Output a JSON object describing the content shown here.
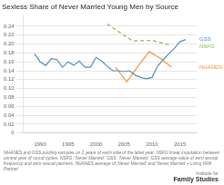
{
  "chart_data": {
    "type": "line",
    "title": "Sexless Share of Never Married Young Men by Source",
    "series": [
      {
        "name": "GSS",
        "color": "#4e8fbe",
        "line_style": "solid",
        "x": [
          1989,
          1990,
          1991,
          1992,
          1993,
          1994,
          1995,
          1996,
          1997,
          1998,
          1999,
          2000,
          2001,
          2002,
          2003,
          2004,
          2005,
          2006,
          2007,
          2008,
          2009,
          2010,
          2011,
          2012,
          2013,
          2014,
          2015,
          2016
        ],
        "values": [
          0.178,
          0.16,
          0.152,
          0.167,
          0.165,
          0.148,
          0.16,
          0.152,
          0.162,
          0.148,
          0.148,
          0.17,
          0.162,
          0.15,
          0.14,
          0.14,
          0.138,
          0.14,
          0.13,
          0.125,
          0.122,
          0.125,
          0.15,
          0.165,
          0.178,
          0.19,
          0.205,
          0.21
        ]
      },
      {
        "name": "NSFG",
        "color": "#85b94a",
        "line_style": "dashed",
        "x": [
          2002,
          2006.5,
          2010,
          2013.5
        ],
        "values": [
          0.245,
          0.207,
          0.208,
          0.197
        ]
      },
      {
        "name": "NHANES",
        "color": "#f4943b",
        "line_style": "solid",
        "x": [
          2003.5,
          2005.5,
          2007.5,
          2009.5,
          2011.5,
          2013.5
        ],
        "values": [
          0.148,
          0.115,
          0.15,
          0.183,
          0.168,
          0.148
        ]
      }
    ],
    "xlim": [
      1987,
      2018
    ],
    "xticks": [
      1990,
      1995,
      2000,
      2005,
      2010,
      2015
    ],
    "ylim": [
      0,
      0.265
    ],
    "yticks": [
      0,
      0.02,
      0.04,
      0.06,
      0.08,
      {
        "value": 0.1,
        "label": "0.10"
      },
      0.12,
      0.14,
      0.16,
      0.18,
      {
        "value": 0.2,
        "label": "0.20"
      },
      0.22,
      0.24
    ],
    "grid": "y",
    "footnote": "NHANES and GSS pooling samples on 2 years of each side of the label year. NSFG linear imputation between\ncentral year of round cycles. NSFG: 'Never Married.' GSS: 'Never Married.' GSS average value of zero sexual\nfrequency and zero sexual partners. NHANES average of 'Never Married' and 'Never Married + Living With\nPartner'",
    "annotations": [
      "Institute for",
      "Family Studies"
    ]
  }
}
